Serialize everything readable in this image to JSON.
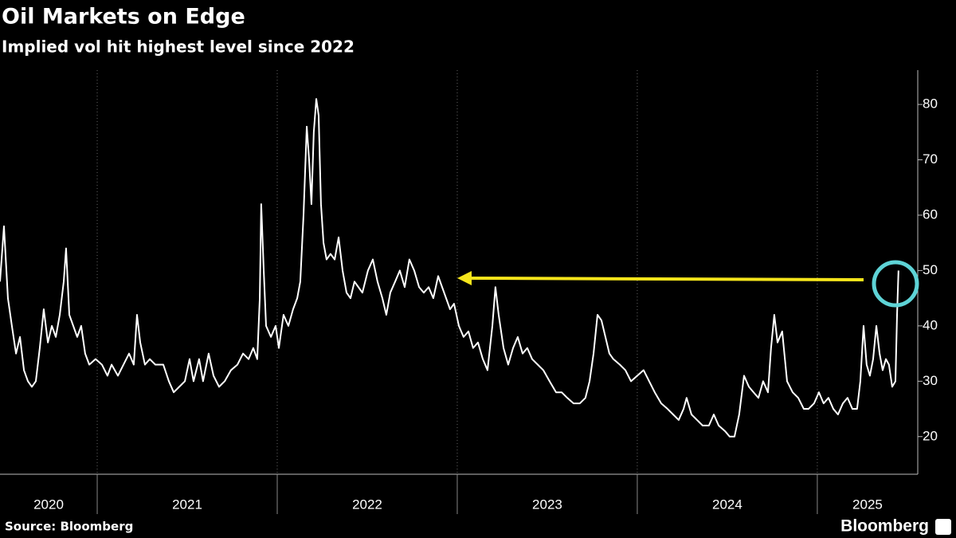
{
  "chart_data": {
    "type": "line",
    "title": "Oil Markets on Edge",
    "subtitle": "Implied vol hit highest level since 2022",
    "source": "Source: Bloomberg",
    "brand": "Bloomberg",
    "x_labels": [
      "2020",
      "2021",
      "2022",
      "2023",
      "2024",
      "2025"
    ],
    "xlim": [
      2020.46,
      2025.558
    ],
    "xticks": [
      2021,
      2022,
      2023,
      2024,
      2025
    ],
    "ylim": [
      13.2,
      86.2
    ],
    "yticks": [
      20,
      30,
      40,
      50,
      60,
      70,
      80
    ],
    "grid": true,
    "series": [
      {
        "color": "#ffffff",
        "x": [
          2020.46,
          2020.482,
          2020.504,
          2020.526,
          2020.549,
          2020.571,
          2020.593,
          2020.615,
          2020.637,
          2020.659,
          2020.681,
          2020.703,
          2020.726,
          2020.748,
          2020.77,
          2020.792,
          2020.814,
          2020.827,
          2020.845,
          2020.867,
          2020.889,
          2020.911,
          2020.933,
          2020.956,
          2020.991,
          2021.026,
          2021.057,
          2021.08,
          2021.115,
          2021.146,
          2021.177,
          2021.203,
          2021.221,
          2021.239,
          2021.265,
          2021.292,
          2021.323,
          2021.367,
          2021.398,
          2021.425,
          2021.456,
          2021.487,
          2021.513,
          2021.535,
          2021.566,
          2021.588,
          2021.619,
          2021.646,
          2021.677,
          2021.708,
          2021.743,
          2021.779,
          2021.81,
          2021.841,
          2021.867,
          2021.889,
          2021.903,
          2021.911,
          2021.925,
          2021.938,
          2021.965,
          2021.991,
          2022.009,
          2022.035,
          2022.062,
          2022.088,
          2022.111,
          2022.128,
          2022.146,
          2022.164,
          2022.177,
          2022.19,
          2022.203,
          2022.217,
          2022.23,
          2022.243,
          2022.257,
          2022.274,
          2022.296,
          2022.319,
          2022.341,
          2022.363,
          2022.385,
          2022.407,
          2022.429,
          2022.451,
          2022.473,
          2022.504,
          2022.531,
          2022.557,
          2022.584,
          2022.606,
          2022.628,
          2022.655,
          2022.681,
          2022.708,
          2022.734,
          2022.761,
          2022.788,
          2022.814,
          2022.841,
          2022.867,
          2022.894,
          2022.916,
          2022.938,
          2022.96,
          2022.982,
          2023.009,
          2023.035,
          2023.062,
          2023.088,
          2023.115,
          2023.142,
          2023.168,
          2023.195,
          2023.212,
          2023.23,
          2023.257,
          2023.283,
          2023.31,
          2023.336,
          2023.363,
          2023.389,
          2023.416,
          2023.447,
          2023.478,
          2023.513,
          2023.549,
          2023.58,
          2023.611,
          2023.646,
          2023.681,
          2023.712,
          2023.735,
          2023.757,
          2023.779,
          2023.801,
          2023.823,
          2023.845,
          2023.867,
          2023.903,
          2023.934,
          2023.965,
          2024.0,
          2024.035,
          2024.066,
          2024.097,
          2024.133,
          2024.168,
          2024.199,
          2024.23,
          2024.257,
          2024.274,
          2024.301,
          2024.332,
          2024.363,
          2024.398,
          2024.425,
          2024.452,
          2024.487,
          2024.513,
          2024.54,
          2024.566,
          2024.593,
          2024.62,
          2024.646,
          2024.673,
          2024.699,
          2024.726,
          2024.743,
          2024.761,
          2024.779,
          2024.805,
          2024.832,
          2024.863,
          2024.894,
          2024.925,
          2024.951,
          2024.982,
          2025.009,
          2025.035,
          2025.062,
          2025.089,
          2025.115,
          2025.142,
          2025.168,
          2025.195,
          2025.221,
          2025.239,
          2025.257,
          2025.274,
          2025.292,
          2025.31,
          2025.328,
          2025.346,
          2025.363,
          2025.381,
          2025.398,
          2025.416,
          2025.434,
          2025.443,
          2025.451
        ],
        "values": [
          48,
          58,
          45,
          40,
          35,
          38,
          32,
          30,
          29,
          30,
          36,
          43,
          37,
          40,
          38,
          42,
          48,
          54,
          42,
          40,
          38,
          40,
          35,
          33,
          34,
          33,
          31,
          33,
          31,
          33,
          35,
          33,
          42,
          37,
          33,
          34,
          33,
          33,
          30,
          28,
          29,
          30,
          34,
          30,
          34,
          30,
          35,
          31,
          29,
          30,
          32,
          33,
          35,
          34,
          36,
          34,
          45,
          62,
          50,
          40,
          38,
          40,
          36,
          42,
          40,
          43,
          45,
          48,
          60,
          76,
          70,
          62,
          75,
          81,
          78,
          62,
          55,
          52,
          53,
          52,
          56,
          50,
          46,
          45,
          48,
          47,
          46,
          50,
          52,
          48,
          45,
          42,
          46,
          48,
          50,
          47,
          52,
          50,
          47,
          46,
          47,
          45,
          49,
          47,
          45,
          43,
          44,
          40,
          38,
          39,
          36,
          37,
          34,
          32,
          40,
          47,
          42,
          36,
          33,
          36,
          38,
          35,
          36,
          34,
          33,
          32,
          30,
          28,
          28,
          27,
          26,
          26,
          27,
          30,
          35,
          42,
          41,
          38,
          35,
          34,
          33,
          32,
          30,
          31,
          32,
          30,
          28,
          26,
          25,
          24,
          23,
          25,
          27,
          24,
          23,
          22,
          22,
          24,
          22,
          21,
          20,
          20,
          24,
          31,
          29,
          28,
          27,
          30,
          28,
          36,
          42,
          37,
          39,
          30,
          28,
          27,
          25,
          25,
          26,
          28,
          26,
          27,
          25,
          24,
          26,
          27,
          25,
          25,
          30,
          40,
          33,
          31,
          34,
          40,
          35,
          32,
          34,
          33,
          29,
          30,
          42,
          50
        ]
      }
    ]
  }
}
